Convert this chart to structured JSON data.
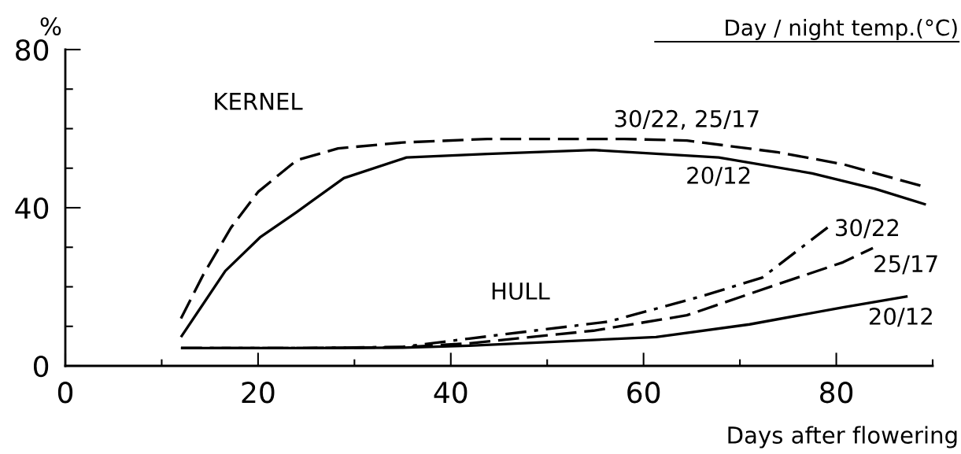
{
  "chart_data": {
    "type": "line",
    "ylabel": "%",
    "xlabel": "Days after flowering",
    "legend_title": "Day / night temp.(°C)",
    "annotations": [
      "KERNEL",
      "HULL"
    ],
    "xlim": [
      0,
      90
    ],
    "ylim": [
      0,
      80
    ],
    "xticks": [
      0,
      {
        "value": 10,
        "label": null
      },
      20,
      {
        "value": 30,
        "label": null
      },
      40,
      {
        "value": 50,
        "label": null
      },
      60,
      {
        "value": 70,
        "label": null
      },
      80,
      {
        "value": 90,
        "label": null
      }
    ],
    "yticks": [
      0,
      {
        "value": 10,
        "label": null
      },
      {
        "value": 20,
        "label": null
      },
      {
        "value": 30,
        "label": null
      },
      40,
      {
        "value": 50,
        "label": null
      },
      {
        "value": 60,
        "label": null
      },
      {
        "value": 70,
        "label": null
      },
      80
    ],
    "grid": false,
    "legend": false,
    "marker": "none",
    "series": [
      {
        "name": "30/22, 25/17",
        "color": "#000000",
        "line_style": "dashed",
        "x": [
          12,
          14.3,
          17.2,
          20,
          24,
          28.3,
          35,
          43.8,
          58,
          64.5,
          74,
          80.7,
          89
        ],
        "values": [
          12,
          23,
          35,
          44,
          52,
          55,
          56.5,
          57.4,
          57.4,
          57,
          54,
          51,
          45.4
        ]
      },
      {
        "name": "20/12",
        "color": "#000000",
        "line_style": "solid",
        "x": [
          12,
          16.6,
          20.2,
          24,
          28.9,
          35.4,
          43.8,
          54.8,
          67.8,
          77.5,
          84,
          89.3
        ],
        "values": [
          7.3,
          24,
          32.5,
          38.9,
          47.5,
          52.7,
          53.6,
          54.6,
          52.7,
          48.7,
          44.8,
          40.8
        ]
      },
      {
        "name": "30/22",
        "color": "#000000",
        "line_style": "dashdot",
        "x": [
          12,
          25,
          35,
          41.9,
          56.4,
          66,
          72.3,
          79.1
        ],
        "values": [
          4.5,
          4.5,
          4.8,
          6.9,
          11.2,
          17.6,
          22.3,
          35
        ]
      },
      {
        "name": "25/17",
        "color": "#000000",
        "line_style": "dashed",
        "x": [
          12,
          25,
          35,
          41.9,
          54.8,
          64.5,
          74,
          80.7,
          83.8
        ],
        "values": [
          4.5,
          4.5,
          4.7,
          5.7,
          8.9,
          12.8,
          20.7,
          26.2,
          29.8
        ]
      },
      {
        "name": "20/12",
        "color": "#000000",
        "line_style": "solid",
        "x": [
          12,
          25,
          35,
          41.9,
          61.3,
          71,
          80.7,
          87.4
        ],
        "values": [
          4.5,
          4.5,
          4.6,
          5.1,
          7.3,
          10.5,
          14.8,
          17.6
        ]
      }
    ]
  }
}
